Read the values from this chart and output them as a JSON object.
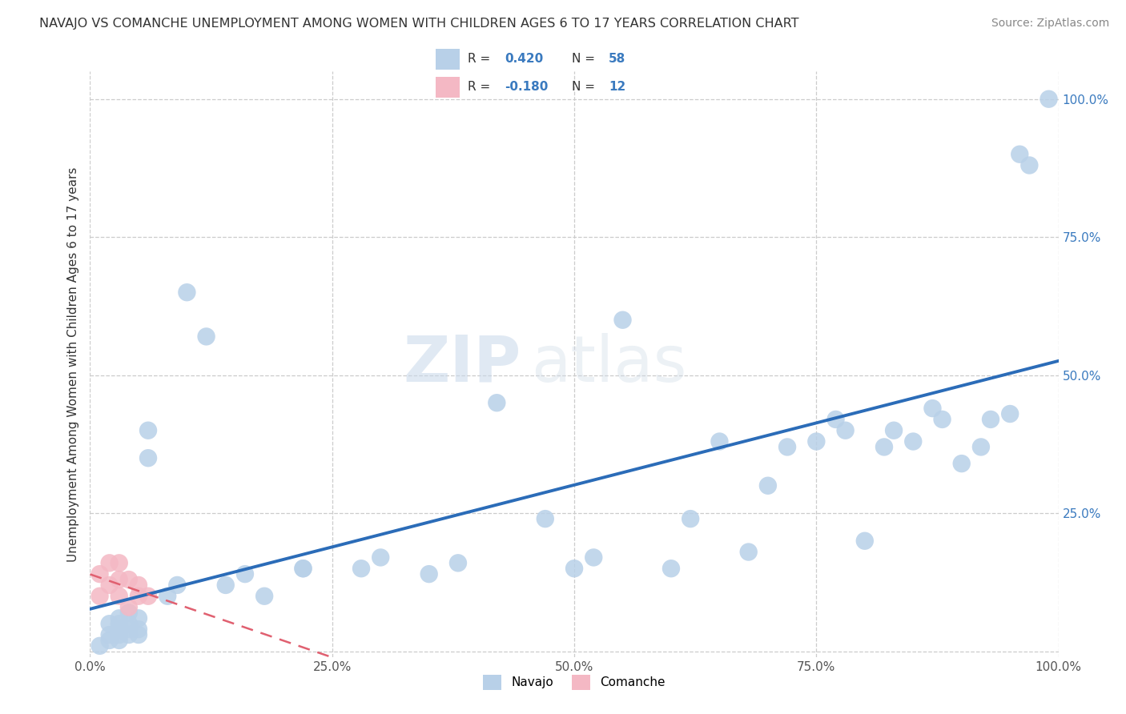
{
  "title": "NAVAJO VS COMANCHE UNEMPLOYMENT AMONG WOMEN WITH CHILDREN AGES 6 TO 17 YEARS CORRELATION CHART",
  "source": "Source: ZipAtlas.com",
  "ylabel": "Unemployment Among Women with Children Ages 6 to 17 years",
  "navajo_R": 0.42,
  "navajo_N": 58,
  "comanche_R": -0.18,
  "comanche_N": 12,
  "navajo_color": "#b8d0e8",
  "comanche_color": "#f4b8c4",
  "navajo_line_color": "#2b6cb8",
  "comanche_line_color": "#e06070",
  "legend_R_color": "#3a7abf",
  "background_color": "#ffffff",
  "watermark_zip": "ZIP",
  "watermark_atlas": "atlas",
  "navajo_x": [
    0.01,
    0.02,
    0.02,
    0.02,
    0.03,
    0.03,
    0.03,
    0.03,
    0.03,
    0.04,
    0.04,
    0.04,
    0.04,
    0.05,
    0.05,
    0.05,
    0.06,
    0.06,
    0.08,
    0.09,
    0.1,
    0.12,
    0.14,
    0.16,
    0.18,
    0.22,
    0.22,
    0.28,
    0.3,
    0.35,
    0.38,
    0.42,
    0.47,
    0.5,
    0.52,
    0.55,
    0.6,
    0.62,
    0.65,
    0.68,
    0.7,
    0.72,
    0.75,
    0.77,
    0.78,
    0.8,
    0.82,
    0.83,
    0.85,
    0.87,
    0.88,
    0.9,
    0.92,
    0.93,
    0.95,
    0.96,
    0.97,
    0.99
  ],
  "navajo_y": [
    0.01,
    0.02,
    0.03,
    0.05,
    0.02,
    0.03,
    0.04,
    0.05,
    0.06,
    0.03,
    0.04,
    0.05,
    0.07,
    0.03,
    0.04,
    0.06,
    0.35,
    0.4,
    0.1,
    0.12,
    0.65,
    0.57,
    0.12,
    0.14,
    0.1,
    0.15,
    0.15,
    0.15,
    0.17,
    0.14,
    0.16,
    0.45,
    0.24,
    0.15,
    0.17,
    0.6,
    0.15,
    0.24,
    0.38,
    0.18,
    0.3,
    0.37,
    0.38,
    0.42,
    0.4,
    0.2,
    0.37,
    0.4,
    0.38,
    0.44,
    0.42,
    0.34,
    0.37,
    0.42,
    0.43,
    0.9,
    0.88,
    1.0
  ],
  "comanche_x": [
    0.01,
    0.01,
    0.02,
    0.02,
    0.03,
    0.03,
    0.03,
    0.04,
    0.04,
    0.05,
    0.05,
    0.06
  ],
  "comanche_y": [
    0.14,
    0.1,
    0.16,
    0.12,
    0.16,
    0.13,
    0.1,
    0.13,
    0.08,
    0.12,
    0.1,
    0.1
  ],
  "xlim": [
    0.0,
    1.0
  ],
  "ylim": [
    -0.01,
    1.05
  ],
  "xticks": [
    0.0,
    0.25,
    0.5,
    0.75,
    1.0
  ],
  "xticklabels": [
    "0.0%",
    "25.0%",
    "50.0%",
    "75.0%",
    "100.0%"
  ],
  "yticks": [
    0.0,
    0.25,
    0.5,
    0.75,
    1.0
  ],
  "yticklabels": [
    "",
    "25.0%",
    "50.0%",
    "75.0%",
    "100.0%"
  ]
}
